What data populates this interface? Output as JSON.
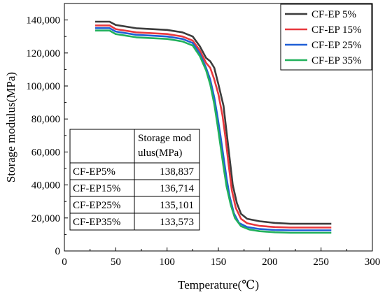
{
  "chart_data": {
    "type": "line",
    "title": "",
    "xlabel": "Temperature(℃)",
    "ylabel": "Storage modulus(MPa)",
    "xlim": [
      0,
      300
    ],
    "ylim": [
      0,
      150000
    ],
    "xticks": [
      0,
      50,
      100,
      150,
      200,
      250,
      300
    ],
    "yticks": [
      0,
      20000,
      40000,
      60000,
      80000,
      100000,
      120000,
      140000
    ],
    "xtick_labels": [
      "0",
      "50",
      "100",
      "150",
      "200",
      "250",
      "300"
    ],
    "ytick_labels": [
      "0",
      "20,000",
      "40,000",
      "60,000",
      "80,000",
      "100,000",
      "120,000",
      "140,000"
    ],
    "grid": false,
    "legend_position": "top-right",
    "series": [
      {
        "name": "CF-EP 5%",
        "color": "#3c3c3c",
        "points": [
          [
            30,
            139000
          ],
          [
            44,
            139000
          ],
          [
            50,
            137000
          ],
          [
            70,
            135000
          ],
          [
            100,
            134000
          ],
          [
            115,
            132500
          ],
          [
            125,
            130000
          ],
          [
            132,
            124000
          ],
          [
            138,
            117000
          ],
          [
            142,
            115000
          ],
          [
            146,
            111000
          ],
          [
            150,
            101000
          ],
          [
            155,
            88000
          ],
          [
            158,
            72000
          ],
          [
            161,
            56000
          ],
          [
            164,
            40000
          ],
          [
            168,
            29000
          ],
          [
            172,
            22500
          ],
          [
            178,
            19500
          ],
          [
            190,
            18000
          ],
          [
            205,
            17000
          ],
          [
            220,
            16500
          ],
          [
            260,
            16500
          ]
        ]
      },
      {
        "name": "CF-EP 15%",
        "color": "#e8383d",
        "points": [
          [
            30,
            136700
          ],
          [
            44,
            136700
          ],
          [
            50,
            134500
          ],
          [
            70,
            132500
          ],
          [
            100,
            131500
          ],
          [
            115,
            130000
          ],
          [
            125,
            127500
          ],
          [
            132,
            121500
          ],
          [
            138,
            114000
          ],
          [
            142,
            111000
          ],
          [
            146,
            104000
          ],
          [
            150,
            95000
          ],
          [
            154,
            82000
          ],
          [
            157,
            68000
          ],
          [
            160,
            52000
          ],
          [
            163,
            37000
          ],
          [
            167,
            26000
          ],
          [
            172,
            19500
          ],
          [
            178,
            16800
          ],
          [
            190,
            15200
          ],
          [
            205,
            14500
          ],
          [
            220,
            14200
          ],
          [
            260,
            14200
          ]
        ]
      },
      {
        "name": "CF-EP 25%",
        "color": "#1f5fd6",
        "points": [
          [
            30,
            135100
          ],
          [
            44,
            135100
          ],
          [
            50,
            133000
          ],
          [
            70,
            131000
          ],
          [
            100,
            130000
          ],
          [
            115,
            128500
          ],
          [
            125,
            126000
          ],
          [
            132,
            119500
          ],
          [
            138,
            111000
          ],
          [
            142,
            104000
          ],
          [
            146,
            93000
          ],
          [
            149,
            82000
          ],
          [
            152,
            70000
          ],
          [
            155,
            57000
          ],
          [
            158,
            44000
          ],
          [
            161,
            33000
          ],
          [
            165,
            23000
          ],
          [
            170,
            17000
          ],
          [
            178,
            14500
          ],
          [
            190,
            13300
          ],
          [
            205,
            12700
          ],
          [
            220,
            12500
          ],
          [
            260,
            12500
          ]
        ]
      },
      {
        "name": "CF-EP 35%",
        "color": "#22b15c",
        "points": [
          [
            30,
            133600
          ],
          [
            44,
            133600
          ],
          [
            50,
            131500
          ],
          [
            70,
            129500
          ],
          [
            100,
            128500
          ],
          [
            115,
            127000
          ],
          [
            125,
            124500
          ],
          [
            132,
            118000
          ],
          [
            138,
            109500
          ],
          [
            142,
            101000
          ],
          [
            146,
            89000
          ],
          [
            149,
            77000
          ],
          [
            152,
            64000
          ],
          [
            155,
            51000
          ],
          [
            158,
            39000
          ],
          [
            162,
            28000
          ],
          [
            166,
            20000
          ],
          [
            172,
            15000
          ],
          [
            180,
            13000
          ],
          [
            190,
            12000
          ],
          [
            205,
            11300
          ],
          [
            220,
            11000
          ],
          [
            260,
            11000
          ]
        ]
      }
    ],
    "table": {
      "header": [
        "",
        "Storage mod",
        "ulus(MPa)"
      ],
      "rows": [
        {
          "label": "CF-EP5%",
          "value": "138,837"
        },
        {
          "label": "CF-EP15%",
          "value": "136,714"
        },
        {
          "label": "CF-EP25%",
          "value": "135,101"
        },
        {
          "label": "CF-EP35%",
          "value": "133,573"
        }
      ]
    }
  }
}
